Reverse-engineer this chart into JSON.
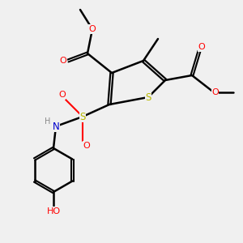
{
  "bg_color": "#f0f0f0",
  "bond_color": "#000000",
  "S_color": "#b8b800",
  "O_color": "#ff0000",
  "N_color": "#0000cc",
  "H_color": "#888888",
  "figsize": [
    3.0,
    3.0
  ],
  "dpi": 100,
  "xlim": [
    0,
    10
  ],
  "ylim": [
    0,
    10
  ]
}
